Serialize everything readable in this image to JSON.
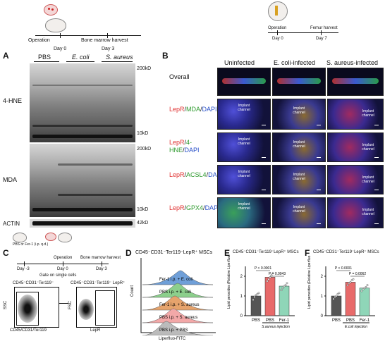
{
  "panels": {
    "A": "A",
    "B": "B",
    "C": "C",
    "D": "D",
    "E": "E",
    "F": "F"
  },
  "timeline_a": {
    "operation": "Operation",
    "harvest": "Bone marrow harvest",
    "day0": "Day 0",
    "day3": "Day 3"
  },
  "timeline_b": {
    "operation": "Operation",
    "harvest": "Femur harvest",
    "day0": "Day 0",
    "day7": "Day 7"
  },
  "blot": {
    "groups": [
      "PBS",
      "E. coli",
      "S. aureus"
    ],
    "rows": [
      "4-HNE",
      "MDA",
      "ACTIN"
    ],
    "markers": {
      "top1": "200kD",
      "bottom1": "10kD",
      "top2": "200kD",
      "bottom2": "10kD",
      "actin": "42kD"
    }
  },
  "histology": {
    "columns": [
      "Uninfected",
      "E. coli-infected",
      "S. aureus-infected"
    ],
    "rows": [
      {
        "parts": [
          {
            "t": "Overall",
            "c": "#111111"
          }
        ]
      },
      {
        "parts": [
          {
            "t": "LepR",
            "c": "#e03030"
          },
          {
            "t": "/",
            "c": "#111111"
          },
          {
            "t": "MDA",
            "c": "#2e9a2e"
          },
          {
            "t": "/",
            "c": "#111111"
          },
          {
            "t": "DAPI",
            "c": "#2850c8"
          }
        ]
      },
      {
        "parts": [
          {
            "t": "LepR",
            "c": "#e03030"
          },
          {
            "t": "/",
            "c": "#111111"
          },
          {
            "t": "4-HNE",
            "c": "#2e9a2e"
          },
          {
            "t": "/",
            "c": "#111111"
          },
          {
            "t": "DAPI",
            "c": "#2850c8"
          }
        ]
      },
      {
        "parts": [
          {
            "t": "LepR",
            "c": "#e03030"
          },
          {
            "t": "/",
            "c": "#111111"
          },
          {
            "t": "ACSL4",
            "c": "#2e9a2e"
          },
          {
            "t": "/",
            "c": "#111111"
          },
          {
            "t": "DAPI",
            "c": "#2850c8"
          }
        ]
      },
      {
        "parts": [
          {
            "t": "LepR",
            "c": "#e03030"
          },
          {
            "t": "/",
            "c": "#111111"
          },
          {
            "t": "GPX4",
            "c": "#2e9a2e"
          },
          {
            "t": "/",
            "c": "#111111"
          },
          {
            "t": "DAPI",
            "c": "#2850c8"
          }
        ]
      }
    ],
    "channel_label": "Implant channel"
  },
  "panel_c": {
    "treatment": "PBS or Fer-1 (i.p. q.d.)",
    "operation": "Operation",
    "harvest": "Bone marrow harvest",
    "dm3": "Day -3",
    "d0": "Day 0",
    "d3": "Day 3",
    "gate": "Gate on single cells",
    "gate1_title": "CD45⁻CD31⁻Ter119⁻",
    "gate2_title": "CD45⁻CD31⁻Ter119⁻ LepR⁺",
    "ssc": "SSC",
    "fsc": "FSC",
    "x1": "CD45/CD31/Ter119",
    "x2": "LepR"
  },
  "panel_d": {
    "title": "CD45⁻CD31⁻Ter119⁻LepR⁺ MSCs",
    "ylabel": "Count",
    "xlabel": "Liperfluo-FITC",
    "legend": [
      "Fer-1 i.p. + E. coli",
      "PBS i.p. + E. coli",
      "Fer-1 i.p. + S. aureus",
      "PBS i.p. + S. aureus",
      "PBS i.p. + PBS"
    ]
  },
  "chart_data": [
    {
      "type": "bar",
      "title": "CD45⁻CD31⁻Ter119⁻LepR⁺ MSCs",
      "ylabel": "Lipid peroxides (Relative Liperfluo MFI)",
      "categories": [
        "PBS",
        "PBS",
        "Fer-1"
      ],
      "group_label": "S.aureus injection",
      "values": [
        1.0,
        1.95,
        1.5
      ],
      "colors": [
        "#555555",
        "#e86a6a",
        "#8fd6b8"
      ],
      "ylim": [
        0,
        2.5
      ],
      "yticks": [
        0,
        1,
        2
      ],
      "points": [
        [
          0.8,
          0.95,
          1.05,
          1.1,
          1.15
        ],
        [
          1.75,
          1.85,
          1.95,
          2.05,
          2.15
        ],
        [
          1.3,
          1.4,
          1.5,
          1.55,
          1.65
        ]
      ],
      "annotations": [
        "P < 0.0001",
        "P = 0.0043"
      ]
    },
    {
      "type": "bar",
      "title": "CD45⁻CD31⁻Ter119⁻LepR⁺ MSCs",
      "ylabel": "Lipid peroxides (Relative Liperfluo MFI)",
      "categories": [
        "PBS",
        "PBS",
        "Fer-1"
      ],
      "group_label": "E.coli injection",
      "values": [
        1.0,
        1.7,
        1.4
      ],
      "colors": [
        "#555555",
        "#e86a6a",
        "#8fd6b8"
      ],
      "ylim": [
        0,
        2.5
      ],
      "yticks": [
        0,
        1,
        2
      ],
      "points": [
        [
          0.85,
          0.95,
          1.0,
          1.1,
          1.15
        ],
        [
          1.55,
          1.65,
          1.7,
          1.8,
          1.85
        ],
        [
          1.25,
          1.35,
          1.4,
          1.45,
          1.55
        ]
      ],
      "annotations": [
        "P < 0.0001",
        "P = 0.0062"
      ]
    }
  ]
}
